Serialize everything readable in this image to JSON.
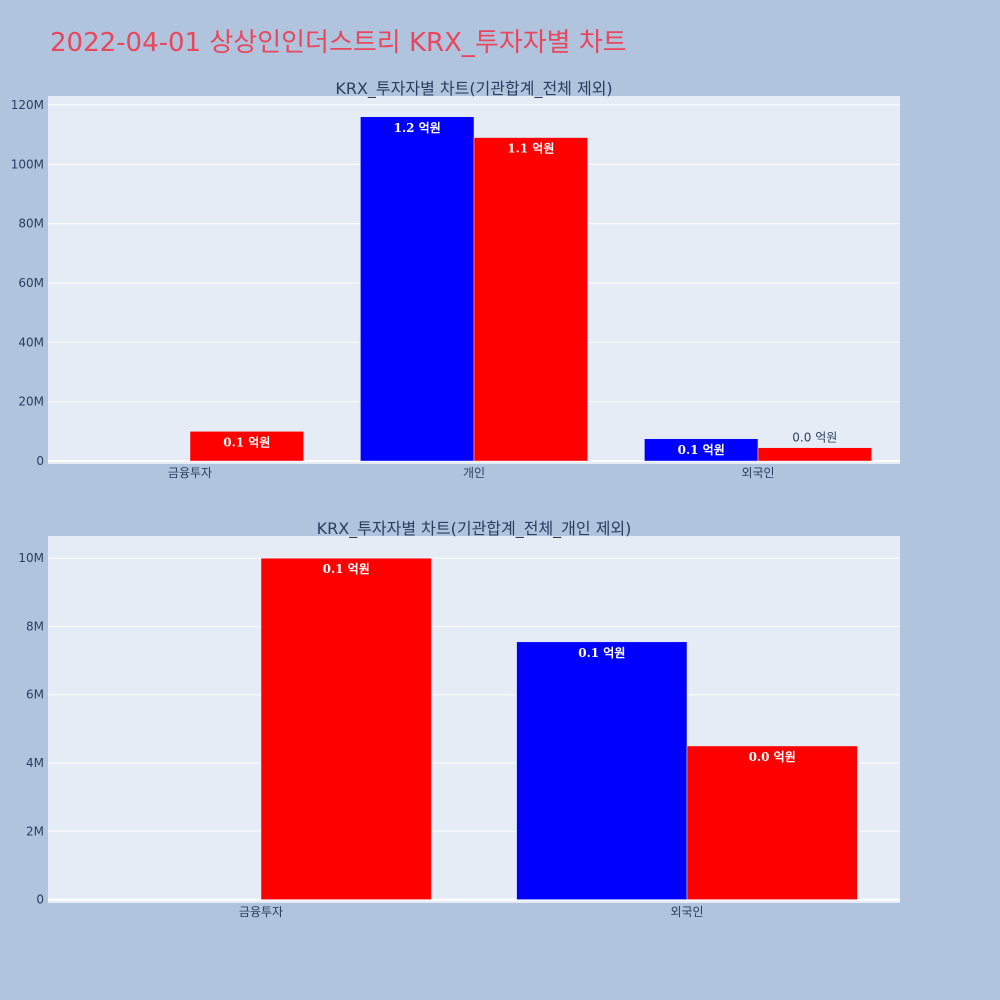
{
  "title": "2022-04-01 상상인인더스트리 KRX_투자자별 차트",
  "colors": {
    "buy": "#0000ff",
    "sell": "#ff0000",
    "plot_bg": "#e5ecf6",
    "page_bg": "#b0c4de",
    "title": "#e8475d",
    "axis_text": "#2a3f5f"
  },
  "chart_data": [
    {
      "type": "bar",
      "title": "KRX_투자자별 차트(기관합계_전체 제외)",
      "categories": [
        "금융투자",
        "개인",
        "외국인"
      ],
      "series": [
        {
          "color": "#0000ff",
          "values": [
            0,
            116000000,
            7500000
          ],
          "labels": [
            "",
            "1.2 억원",
            "0.1 억원"
          ]
        },
        {
          "color": "#ff0000",
          "values": [
            10000000,
            109000000,
            4500000
          ],
          "labels": [
            "0.1 억원",
            "1.1 억원",
            "0.0 억원"
          ]
        }
      ],
      "ylim": [
        -1000000,
        123000000
      ],
      "yticks": [
        0,
        20000000,
        40000000,
        60000000,
        80000000,
        100000000,
        120000000
      ],
      "ytick_labels": [
        "0",
        "20M",
        "40M",
        "60M",
        "80M",
        "100M",
        "120M"
      ],
      "grid": true
    },
    {
      "type": "bar",
      "title": "KRX_투자자별 차트(기관합계_전체_개인 제외)",
      "categories": [
        "금융투자",
        "외국인"
      ],
      "series": [
        {
          "color": "#0000ff",
          "values": [
            0,
            7550000
          ],
          "labels": [
            "",
            "0.1 억원"
          ]
        },
        {
          "color": "#ff0000",
          "values": [
            10000000,
            4500000
          ],
          "labels": [
            "0.1 억원",
            "0.0 억원"
          ]
        }
      ],
      "ylim": [
        -100000,
        10650000
      ],
      "yticks": [
        0,
        2000000,
        4000000,
        6000000,
        8000000,
        10000000
      ],
      "ytick_labels": [
        "0",
        "2M",
        "4M",
        "6M",
        "8M",
        "10M"
      ],
      "grid": true
    }
  ]
}
